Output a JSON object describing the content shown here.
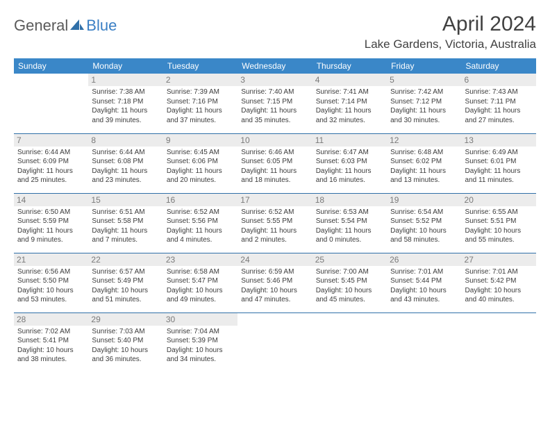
{
  "logo": {
    "part1": "General",
    "part2": "Blue"
  },
  "title": "April 2024",
  "location": "Lake Gardens, Victoria, Australia",
  "colors": {
    "header_bg": "#3a87c8",
    "header_text": "#ffffff",
    "day_num_bg": "#ececec",
    "day_num_text": "#7a7a7a",
    "cell_border": "#2f6fa8",
    "body_text": "#3b3b3b",
    "title_text": "#414141",
    "logo_gray": "#5a5a5a",
    "logo_blue": "#3a7fc4"
  },
  "weekdays": [
    "Sunday",
    "Monday",
    "Tuesday",
    "Wednesday",
    "Thursday",
    "Friday",
    "Saturday"
  ],
  "weeks": [
    [
      null,
      {
        "n": "1",
        "l": [
          "Sunrise: 7:38 AM",
          "Sunset: 7:18 PM",
          "Daylight: 11 hours",
          "and 39 minutes."
        ]
      },
      {
        "n": "2",
        "l": [
          "Sunrise: 7:39 AM",
          "Sunset: 7:16 PM",
          "Daylight: 11 hours",
          "and 37 minutes."
        ]
      },
      {
        "n": "3",
        "l": [
          "Sunrise: 7:40 AM",
          "Sunset: 7:15 PM",
          "Daylight: 11 hours",
          "and 35 minutes."
        ]
      },
      {
        "n": "4",
        "l": [
          "Sunrise: 7:41 AM",
          "Sunset: 7:14 PM",
          "Daylight: 11 hours",
          "and 32 minutes."
        ]
      },
      {
        "n": "5",
        "l": [
          "Sunrise: 7:42 AM",
          "Sunset: 7:12 PM",
          "Daylight: 11 hours",
          "and 30 minutes."
        ]
      },
      {
        "n": "6",
        "l": [
          "Sunrise: 7:43 AM",
          "Sunset: 7:11 PM",
          "Daylight: 11 hours",
          "and 27 minutes."
        ]
      }
    ],
    [
      {
        "n": "7",
        "l": [
          "Sunrise: 6:44 AM",
          "Sunset: 6:09 PM",
          "Daylight: 11 hours",
          "and 25 minutes."
        ]
      },
      {
        "n": "8",
        "l": [
          "Sunrise: 6:44 AM",
          "Sunset: 6:08 PM",
          "Daylight: 11 hours",
          "and 23 minutes."
        ]
      },
      {
        "n": "9",
        "l": [
          "Sunrise: 6:45 AM",
          "Sunset: 6:06 PM",
          "Daylight: 11 hours",
          "and 20 minutes."
        ]
      },
      {
        "n": "10",
        "l": [
          "Sunrise: 6:46 AM",
          "Sunset: 6:05 PM",
          "Daylight: 11 hours",
          "and 18 minutes."
        ]
      },
      {
        "n": "11",
        "l": [
          "Sunrise: 6:47 AM",
          "Sunset: 6:03 PM",
          "Daylight: 11 hours",
          "and 16 minutes."
        ]
      },
      {
        "n": "12",
        "l": [
          "Sunrise: 6:48 AM",
          "Sunset: 6:02 PM",
          "Daylight: 11 hours",
          "and 13 minutes."
        ]
      },
      {
        "n": "13",
        "l": [
          "Sunrise: 6:49 AM",
          "Sunset: 6:01 PM",
          "Daylight: 11 hours",
          "and 11 minutes."
        ]
      }
    ],
    [
      {
        "n": "14",
        "l": [
          "Sunrise: 6:50 AM",
          "Sunset: 5:59 PM",
          "Daylight: 11 hours",
          "and 9 minutes."
        ]
      },
      {
        "n": "15",
        "l": [
          "Sunrise: 6:51 AM",
          "Sunset: 5:58 PM",
          "Daylight: 11 hours",
          "and 7 minutes."
        ]
      },
      {
        "n": "16",
        "l": [
          "Sunrise: 6:52 AM",
          "Sunset: 5:56 PM",
          "Daylight: 11 hours",
          "and 4 minutes."
        ]
      },
      {
        "n": "17",
        "l": [
          "Sunrise: 6:52 AM",
          "Sunset: 5:55 PM",
          "Daylight: 11 hours",
          "and 2 minutes."
        ]
      },
      {
        "n": "18",
        "l": [
          "Sunrise: 6:53 AM",
          "Sunset: 5:54 PM",
          "Daylight: 11 hours",
          "and 0 minutes."
        ]
      },
      {
        "n": "19",
        "l": [
          "Sunrise: 6:54 AM",
          "Sunset: 5:52 PM",
          "Daylight: 10 hours",
          "and 58 minutes."
        ]
      },
      {
        "n": "20",
        "l": [
          "Sunrise: 6:55 AM",
          "Sunset: 5:51 PM",
          "Daylight: 10 hours",
          "and 55 minutes."
        ]
      }
    ],
    [
      {
        "n": "21",
        "l": [
          "Sunrise: 6:56 AM",
          "Sunset: 5:50 PM",
          "Daylight: 10 hours",
          "and 53 minutes."
        ]
      },
      {
        "n": "22",
        "l": [
          "Sunrise: 6:57 AM",
          "Sunset: 5:49 PM",
          "Daylight: 10 hours",
          "and 51 minutes."
        ]
      },
      {
        "n": "23",
        "l": [
          "Sunrise: 6:58 AM",
          "Sunset: 5:47 PM",
          "Daylight: 10 hours",
          "and 49 minutes."
        ]
      },
      {
        "n": "24",
        "l": [
          "Sunrise: 6:59 AM",
          "Sunset: 5:46 PM",
          "Daylight: 10 hours",
          "and 47 minutes."
        ]
      },
      {
        "n": "25",
        "l": [
          "Sunrise: 7:00 AM",
          "Sunset: 5:45 PM",
          "Daylight: 10 hours",
          "and 45 minutes."
        ]
      },
      {
        "n": "26",
        "l": [
          "Sunrise: 7:01 AM",
          "Sunset: 5:44 PM",
          "Daylight: 10 hours",
          "and 43 minutes."
        ]
      },
      {
        "n": "27",
        "l": [
          "Sunrise: 7:01 AM",
          "Sunset: 5:42 PM",
          "Daylight: 10 hours",
          "and 40 minutes."
        ]
      }
    ],
    [
      {
        "n": "28",
        "l": [
          "Sunrise: 7:02 AM",
          "Sunset: 5:41 PM",
          "Daylight: 10 hours",
          "and 38 minutes."
        ]
      },
      {
        "n": "29",
        "l": [
          "Sunrise: 7:03 AM",
          "Sunset: 5:40 PM",
          "Daylight: 10 hours",
          "and 36 minutes."
        ]
      },
      {
        "n": "30",
        "l": [
          "Sunrise: 7:04 AM",
          "Sunset: 5:39 PM",
          "Daylight: 10 hours",
          "and 34 minutes."
        ]
      },
      null,
      null,
      null,
      null
    ]
  ]
}
